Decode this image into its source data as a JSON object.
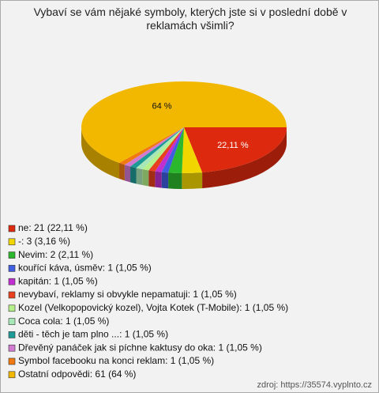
{
  "chart_data": {
    "type": "pie3d",
    "title": "Vybaví se vám nějaké symboly, kterých jste si v poslední době v reklamách všimli?",
    "categories": [
      "ne: 21 (22,11 %)",
      "-: 3 (3,16 %)",
      "Nevim: 2 (2,11 %)",
      "kouřící káva, úsměv: 1 (1,05 %)",
      "kapitán: 1 (1,05 %)",
      "nevybaví, reklamy si obvykle nepamatuji: 1 (1,05 %)",
      "Kozel (Velkopopovický kozel), Vojta Kotek (T-Mobile): 1 (1,05 %)",
      "Coca cola: 1 (1,05 %)",
      "děti - těch je tam plno ...: 1 (1,05 %)",
      "Dřevěný panáček jak si píchne kaktusy do oka: 1 (1,05 %)",
      "Symbol facebooku na konci reklam: 1 (1,05 %)",
      "Ostatní odpovědi: 61 (64 %)"
    ],
    "values": [
      22.11,
      3.16,
      2.11,
      1.05,
      1.05,
      1.05,
      1.05,
      1.05,
      1.05,
      1.05,
      1.05,
      64
    ],
    "value_labels": [
      "22,11 %",
      null,
      null,
      null,
      null,
      null,
      null,
      null,
      null,
      null,
      null,
      "64 %"
    ],
    "colors": [
      "#dd2a0e",
      "#f2d600",
      "#2cb82c",
      "#3f5fe0",
      "#c02fd0",
      "#e8401e",
      "#b6f08a",
      "#a8e8b8",
      "#1e9a96",
      "#d07ad0",
      "#f07a10",
      "#f2b800"
    ],
    "source": "zdroj: https://35574.vyplnto.cz"
  }
}
